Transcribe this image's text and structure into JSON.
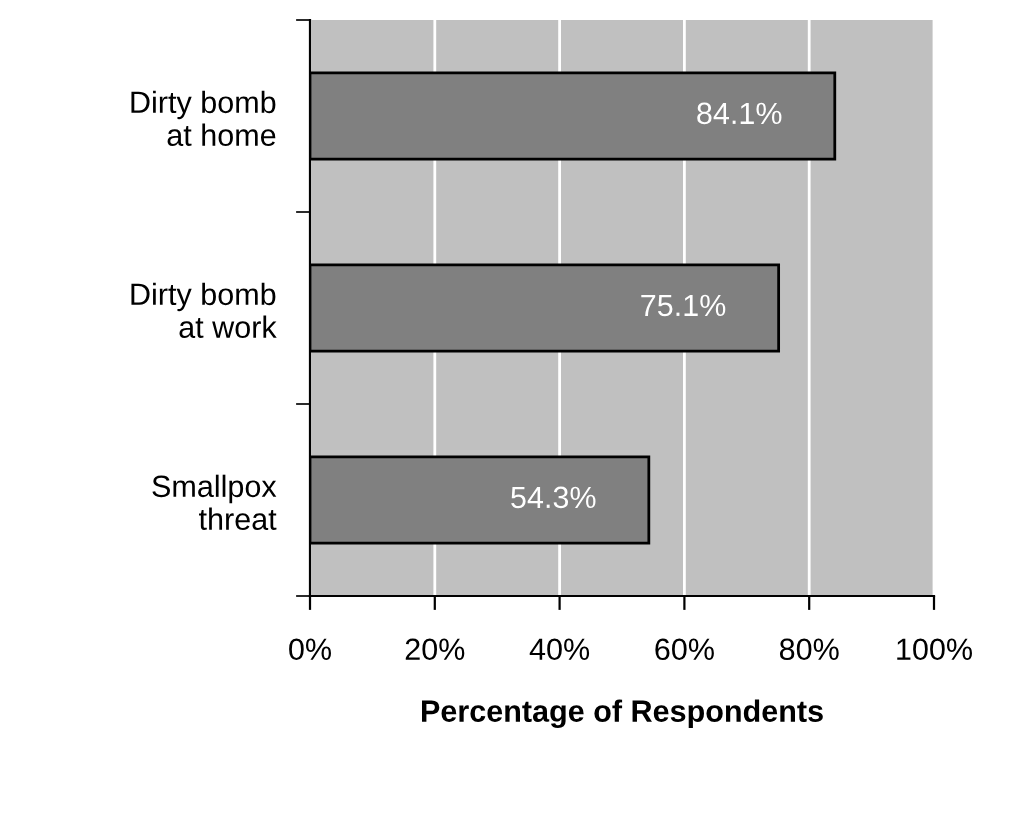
{
  "chart_data": {
    "type": "bar",
    "orientation": "horizontal",
    "xlabel": "Percentage of Respondents",
    "categories": [
      "Dirty bomb\nat home",
      "Dirty bomb\nat work",
      "Smallpox\nthreat"
    ],
    "values": [
      84.1,
      75.1,
      54.3
    ],
    "value_labels": [
      "84.1%",
      "75.1%",
      "54.3%"
    ],
    "color": "#808080",
    "xlim": [
      0,
      100
    ],
    "xticks": [
      {
        "value": 0,
        "label": "0%"
      },
      {
        "value": 20,
        "label": "20%"
      },
      {
        "value": 40,
        "label": "40%"
      },
      {
        "value": 60,
        "label": "60%"
      },
      {
        "value": 80,
        "label": "80%"
      },
      {
        "value": 100,
        "label": "100%"
      }
    ],
    "grid": "x",
    "legend": false
  }
}
